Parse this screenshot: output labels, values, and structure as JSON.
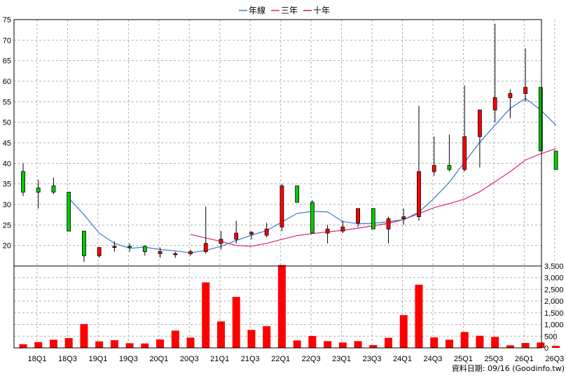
{
  "chart_data": {
    "type": "candlestick",
    "legend": [
      {
        "name": "年線",
        "color": "#3b78d8"
      },
      {
        "name": "三年",
        "color": "#e0207a"
      },
      {
        "name": "十年",
        "color": "#c2185b"
      }
    ],
    "legend_position": "top-center",
    "grid": true,
    "price_ylim": [
      15,
      75
    ],
    "price_ticks": [
      "75",
      "70",
      "65",
      "60",
      "55",
      "50",
      "45",
      "40",
      "35",
      "30",
      "25",
      "20"
    ],
    "volume_ylim": [
      0,
      3500
    ],
    "volume_ticks": [
      "3,500",
      "3,000",
      "2,500",
      "2,000",
      "1,500",
      "1,000",
      "500",
      "0"
    ],
    "x_ticks": [
      "18Q1",
      "18Q3",
      "19Q1",
      "19Q3",
      "20Q1",
      "20Q3",
      "21Q1",
      "21Q3",
      "22Q1",
      "22Q3",
      "23Q1",
      "23Q3",
      "24Q1",
      "24Q3",
      "25Q1",
      "25Q3",
      "26Q1",
      "26Q3"
    ],
    "up_color": "#ff0000",
    "down_color": "#00cc00",
    "volume_color": "#ff0000",
    "candles": [
      {
        "o": 38,
        "h": 40,
        "l": 32,
        "c": 33
      },
      {
        "o": 34,
        "h": 36,
        "l": 29,
        "c": 33
      },
      {
        "o": 34.5,
        "h": 36.5,
        "l": 32.5,
        "c": 33
      },
      {
        "o": 33,
        "h": 33,
        "l": 23.5,
        "c": 23.5
      },
      {
        "o": 23.5,
        "h": 23.5,
        "l": 16,
        "c": 17.5
      },
      {
        "o": 17.5,
        "h": 19.5,
        "l": 17,
        "c": 19.5
      },
      {
        "o": 19.5,
        "h": 21,
        "l": 18.5,
        "c": 19.8
      },
      {
        "o": 19.8,
        "h": 20.5,
        "l": 18.5,
        "c": 19.6
      },
      {
        "o": 19.8,
        "h": 20,
        "l": 17.5,
        "c": 18.5
      },
      {
        "o": 18,
        "h": 19.5,
        "l": 17,
        "c": 18.5
      },
      {
        "o": 18,
        "h": 18.5,
        "l": 17,
        "c": 18
      },
      {
        "o": 18,
        "h": 19,
        "l": 17.5,
        "c": 18.5
      },
      {
        "o": 18.5,
        "h": 29.5,
        "l": 18,
        "c": 20.5
      },
      {
        "o": 20.5,
        "h": 23.5,
        "l": 19,
        "c": 21.5
      },
      {
        "o": 21.5,
        "h": 26,
        "l": 20.5,
        "c": 23
      },
      {
        "o": 22.8,
        "h": 23.5,
        "l": 21.5,
        "c": 23.2
      },
      {
        "o": 22.5,
        "h": 25.5,
        "l": 22,
        "c": 24
      },
      {
        "o": 24.5,
        "h": 35,
        "l": 23.5,
        "c": 34.5
      },
      {
        "o": 34.5,
        "h": 34.5,
        "l": 30.5,
        "c": 30.5
      },
      {
        "o": 30.5,
        "h": 31,
        "l": 23,
        "c": 23
      },
      {
        "o": 23,
        "h": 25,
        "l": 20.5,
        "c": 24
      },
      {
        "o": 23.5,
        "h": 26,
        "l": 23,
        "c": 24.5
      },
      {
        "o": 25.5,
        "h": 29,
        "l": 24.5,
        "c": 29
      },
      {
        "o": 29,
        "h": 29,
        "l": 24,
        "c": 24
      },
      {
        "o": 24,
        "h": 27,
        "l": 20.5,
        "c": 26.5
      },
      {
        "o": 26.5,
        "h": 29,
        "l": 25,
        "c": 27
      },
      {
        "o": 27,
        "h": 54,
        "l": 26,
        "c": 38
      },
      {
        "o": 38,
        "h": 46.5,
        "l": 37,
        "c": 39.5
      },
      {
        "o": 39.5,
        "h": 47,
        "l": 38,
        "c": 38.5
      },
      {
        "o": 38.5,
        "h": 59,
        "l": 38,
        "c": 46.5
      },
      {
        "o": 46.5,
        "h": 53,
        "l": 39,
        "c": 53
      },
      {
        "o": 53,
        "h": 74,
        "l": 50,
        "c": 56
      },
      {
        "o": 56,
        "h": 58,
        "l": 51,
        "c": 57
      },
      {
        "o": 57,
        "h": 68,
        "l": 55,
        "c": 58.5
      },
      {
        "o": 58.5,
        "h": 58.5,
        "l": 43,
        "c": 43
      },
      {
        "o": 43,
        "h": 43,
        "l": 38.5,
        "c": 38.5
      }
    ],
    "year_line": [
      null,
      null,
      null,
      31.5,
      27.5,
      23,
      20.5,
      19.3,
      19.6,
      19,
      18.7,
      18.2,
      18.8,
      19.8,
      21.2,
      22.5,
      23.6,
      25.7,
      27.8,
      28.3,
      28.2,
      25.8,
      25.3,
      25.4,
      25.8,
      26.3,
      28.1,
      31.5,
      35.4,
      40.3,
      45.1,
      49.3,
      53.4,
      55.8,
      53,
      49.3
    ],
    "three_year_line": [
      null,
      null,
      null,
      null,
      null,
      null,
      null,
      null,
      null,
      null,
      null,
      22.7,
      21.8,
      21,
      20,
      19.8,
      20.5,
      21.5,
      22.4,
      22.9,
      23.3,
      23.7,
      24.2,
      24.8,
      25.4,
      26.3,
      27.8,
      29.2,
      30.2,
      31.3,
      33.1,
      35.5,
      38,
      40.8,
      42.3,
      43.6
    ],
    "volume": [
      160,
      250,
      350,
      420,
      1020,
      280,
      330,
      200,
      190,
      360,
      740,
      440,
      2800,
      1130,
      2180,
      770,
      930,
      3540,
      320,
      510,
      290,
      230,
      290,
      120,
      430,
      1400,
      2700,
      450,
      350,
      680,
      520,
      470,
      110,
      210,
      230,
      90
    ]
  },
  "credit": "資料日期: 09/16   (Goodinfo.tw)"
}
